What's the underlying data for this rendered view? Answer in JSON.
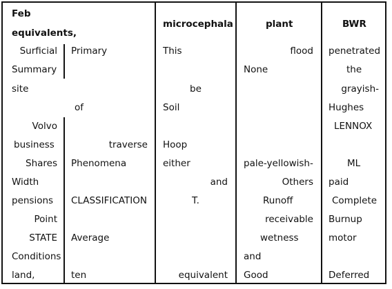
{
  "headers": {
    "col1": [
      "Feb",
      "equivalents,"
    ],
    "col2": "microcephala",
    "col3": "plant",
    "col4": "BWR"
  },
  "cells": {
    "c1a": [
      "Surficial",
      "Summary",
      "site",
      "",
      "Volvo",
      "business",
      "Shares",
      "Width",
      "pensions",
      "Point",
      "STATE",
      "Conditions",
      "land,"
    ],
    "c1b": [
      "Primary",
      "",
      "",
      "of",
      "",
      "traverse",
      "Phenomena",
      "",
      "CLASSIFICATION",
      "",
      "Average",
      "",
      "ten"
    ],
    "c2": [
      "This",
      "",
      "be",
      "Soil",
      "",
      "Hoop",
      "either",
      "and",
      "T.",
      "",
      "",
      "",
      "equivalent"
    ],
    "c3": [
      "flood",
      "None",
      "",
      "",
      "",
      "",
      "pale-yellowish-",
      "Others",
      "Runoff",
      "receivable",
      "wetness",
      "and",
      "Good"
    ],
    "c4": [
      "penetrated",
      "the",
      "grayish-",
      "Hughes",
      "LENNOX",
      "",
      "ML",
      "paid",
      "Complete",
      "Burnup",
      "motor",
      "",
      "Deferred"
    ]
  }
}
